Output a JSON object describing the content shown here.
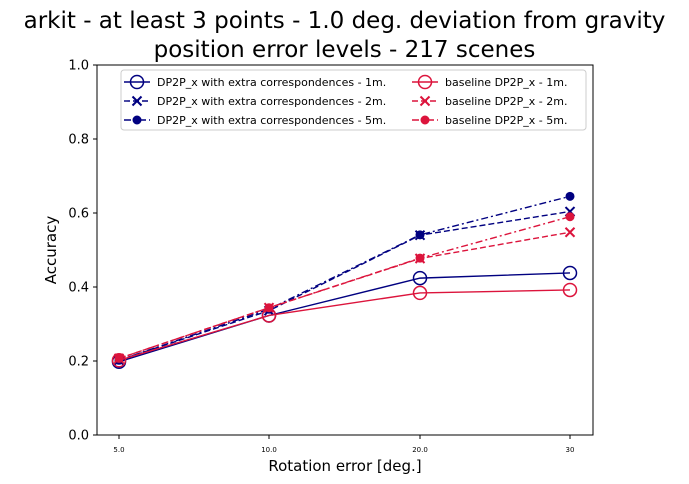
{
  "chart_data": {
    "type": "line",
    "title": "arkit - at least 3 points - 1.0 deg. deviation from gravity",
    "subtitle": "position error levels - 217 scenes",
    "xlabel": "Rotation error [deg.]",
    "ylabel": "Accuracy",
    "x": [
      5,
      10,
      20,
      30
    ],
    "x_tick_labels": [
      "5.0",
      "10.0",
      "20.0",
      "30"
    ],
    "ylim": [
      0,
      1
    ],
    "y_ticks": [
      0.0,
      0.2,
      0.4,
      0.6,
      0.8,
      1.0
    ],
    "y_tick_labels": [
      "0.0",
      "0.2",
      "0.4",
      "0.6",
      "0.8",
      "1.0"
    ],
    "grid": false,
    "legend_position": "top",
    "series": [
      {
        "name": "DP2P_x with extra correspondences - 1m.",
        "color": "#000080",
        "line": "solid",
        "marker": "circle-open",
        "values": [
          0.198,
          0.323,
          0.424,
          0.438
        ]
      },
      {
        "name": "DP2P_x with extra correspondences - 2m.",
        "color": "#000080",
        "line": "dashed",
        "marker": "x",
        "values": [
          0.202,
          0.336,
          0.54,
          0.604
        ]
      },
      {
        "name": "DP2P_x with extra correspondences - 5m.",
        "color": "#000080",
        "line": "dashdot",
        "marker": "dot",
        "values": [
          0.202,
          0.34,
          0.541,
          0.645
        ]
      },
      {
        "name": "baseline DP2P_x - 1m.",
        "color": "#dc143c",
        "line": "solid",
        "marker": "circle-open",
        "values": [
          0.202,
          0.323,
          0.384,
          0.392
        ]
      },
      {
        "name": "baseline DP2P_x - 2m.",
        "color": "#dc143c",
        "line": "dashed",
        "marker": "x",
        "values": [
          0.207,
          0.344,
          0.477,
          0.548
        ]
      },
      {
        "name": "baseline DP2P_x - 5m.",
        "color": "#dc143c",
        "line": "dashdot",
        "marker": "dot",
        "values": [
          0.207,
          0.344,
          0.478,
          0.59
        ]
      }
    ]
  }
}
